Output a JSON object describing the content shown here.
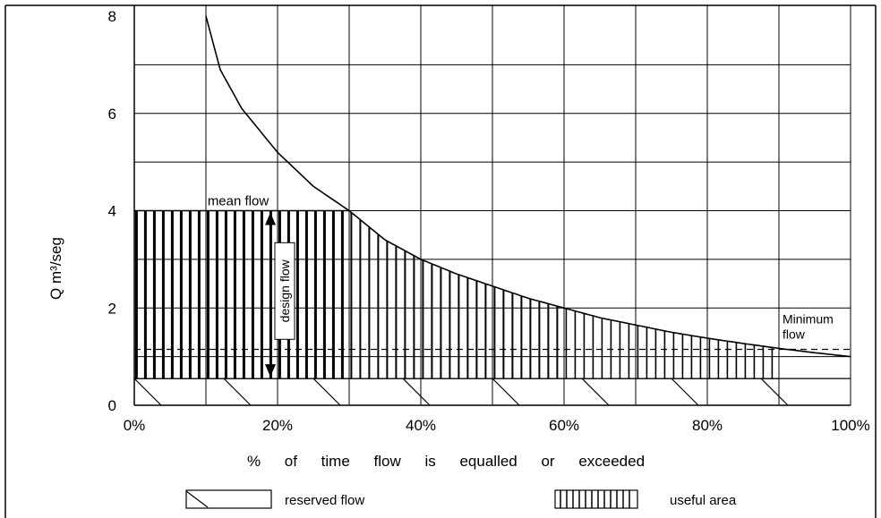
{
  "chart_data": {
    "type": "area",
    "xlabel": "% of time flow is equalled or exceeded",
    "ylabel": "Q m³/seg",
    "xlim": [
      0,
      100
    ],
    "ylim": [
      0,
      8
    ],
    "x_ticks": [
      "0%",
      "20%",
      "40%",
      "60%",
      "80%",
      "100%"
    ],
    "y_ticks": [
      "0",
      "2",
      "4",
      "6",
      "8"
    ],
    "grid": true,
    "series": [
      {
        "name": "flow duration curve",
        "x": [
          10,
          12,
          15,
          20,
          25,
          30,
          35,
          40,
          45,
          50,
          55,
          60,
          65,
          70,
          75,
          80,
          85,
          90,
          95,
          100
        ],
        "y": [
          8.0,
          6.9,
          6.1,
          5.2,
          4.5,
          4.0,
          3.4,
          3.0,
          2.7,
          2.45,
          2.2,
          2.0,
          1.8,
          1.65,
          1.5,
          1.38,
          1.27,
          1.17,
          1.08,
          1.0
        ]
      }
    ],
    "mean_flow": 4.0,
    "reserved_flow": 0.55,
    "minimum_flow": 1.15,
    "useful_area_end_x": 90,
    "design_flow_range": [
      0.55,
      4.0
    ],
    "design_flow_x": 19,
    "annotations": [
      "mean flow",
      "design flow",
      "Minimum",
      "flow"
    ],
    "legend": [
      {
        "name": "reserved flow",
        "pattern": "diagonal"
      },
      {
        "name": "useful area",
        "pattern": "vertical"
      }
    ],
    "legend_position": "bottom"
  }
}
